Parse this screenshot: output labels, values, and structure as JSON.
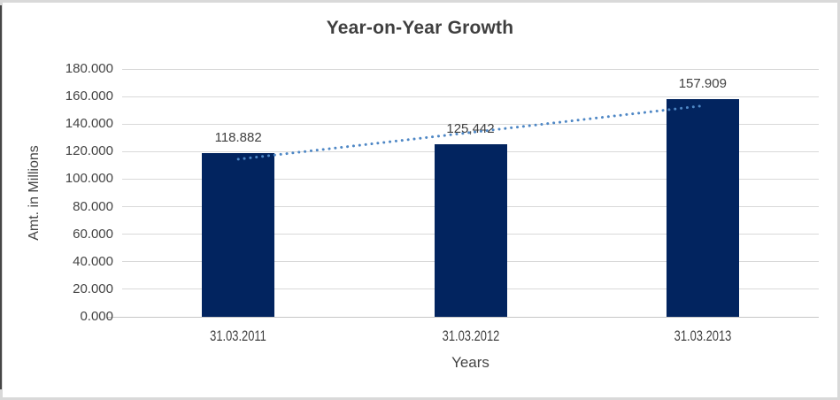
{
  "frame": {
    "border_color": "#d9d9d9",
    "left_edge_line_color": "#454545",
    "background": "#ffffff"
  },
  "chart_data": {
    "type": "bar",
    "title": "Year-on-Year Growth",
    "xlabel": "Years",
    "ylabel": "Amt. in Millions",
    "categories": [
      "31.03.2011",
      "31.03.2012",
      "31.03.2013"
    ],
    "values": [
      118.882,
      125.442,
      157.909
    ],
    "data_labels": [
      "118.882",
      "125,442",
      "157.909"
    ],
    "data_label_position": "above-bar",
    "ylim": [
      0,
      180
    ],
    "ytick_step": 20,
    "ytick_labels": [
      "0.000",
      "20.000",
      "40.000",
      "60.000",
      "80.000",
      "100.000",
      "120.000",
      "140.000",
      "160.000",
      "180.000"
    ],
    "grid": true,
    "legend": "none",
    "bar_color": "#02245F",
    "gridline_color": "#d9d9d9",
    "axis_line_color": "#c6c6c6",
    "text_color": "#404040",
    "trendline": {
      "style": "dotted",
      "color": "#4E87C5",
      "endpoint_values": [
        114.5,
        153.3
      ],
      "endpoint_category_indexes": [
        0,
        2
      ]
    }
  }
}
